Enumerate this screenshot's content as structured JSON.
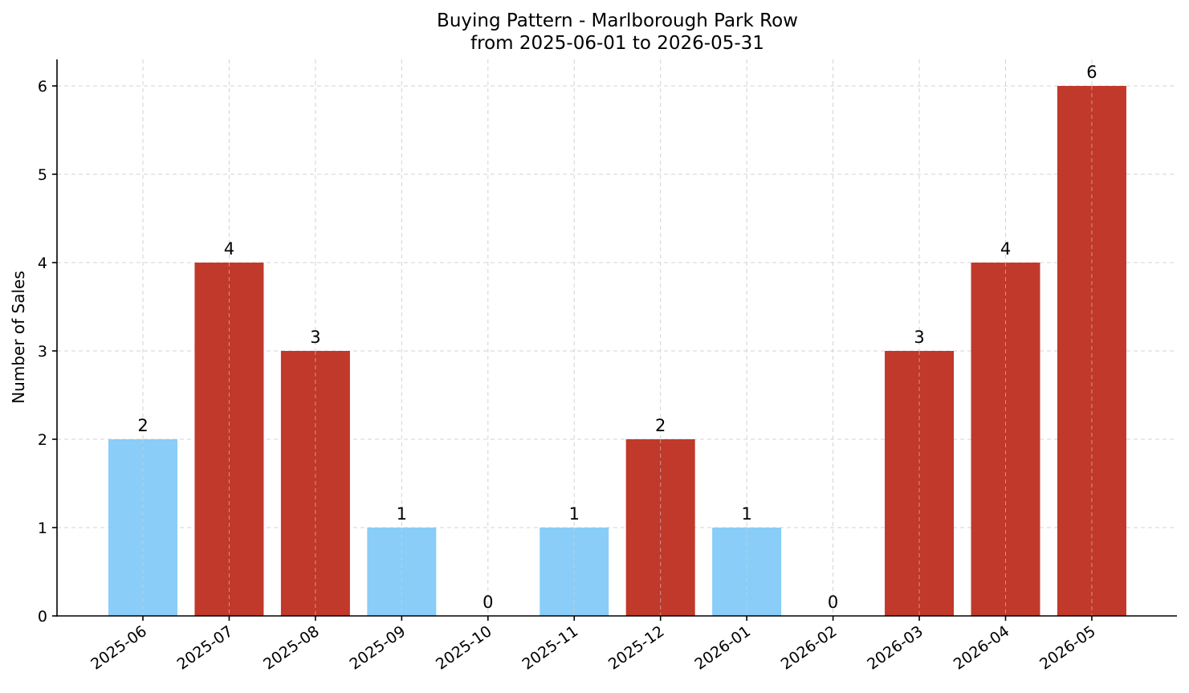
{
  "chart_data": {
    "type": "bar",
    "title": "Buying Pattern - Marlborough Park Row",
    "subtitle": "from 2025-06-01 to 2026-05-31",
    "xlabel": "",
    "ylabel": "Number of Sales",
    "categories": [
      "2025-06",
      "2025-07",
      "2025-08",
      "2025-09",
      "2025-10",
      "2025-11",
      "2025-12",
      "2026-01",
      "2026-02",
      "2026-03",
      "2026-04",
      "2026-05"
    ],
    "values": [
      2,
      4,
      3,
      1,
      0,
      1,
      2,
      1,
      0,
      3,
      4,
      6
    ],
    "bar_colors": [
      "#89cdf8",
      "#c0392b",
      "#c0392b",
      "#89cdf8",
      "#89cdf8",
      "#89cdf8",
      "#c0392b",
      "#89cdf8",
      "#89cdf8",
      "#c0392b",
      "#c0392b",
      "#c0392b"
    ],
    "yticks": [
      0,
      1,
      2,
      3,
      4,
      5,
      6
    ],
    "ylim": [
      0,
      6.3
    ],
    "grid": true,
    "legend": "none"
  }
}
